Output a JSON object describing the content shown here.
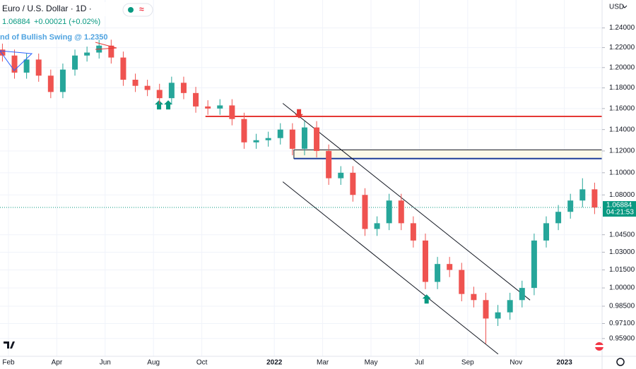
{
  "header": {
    "title": "Euro / U.S. Dollar · 1D ·",
    "change": "+0.00021 (+0.02%)",
    "note": "nd of Bullish Swing @ 1.2350",
    "currency": "USD",
    "countdown": "04:21:53"
  },
  "chart_data": {
    "type": "candlestick",
    "log_scale": true,
    "grid": true,
    "up_color": "#26a69a",
    "down_color": "#ef5350",
    "x": [
      0.75,
      1.25,
      1.75,
      2.25,
      2.75,
      3.25,
      3.75,
      4.25,
      4.75,
      5.25,
      5.75,
      6.25,
      6.75,
      7.25,
      7.75,
      8.25,
      8.75,
      9.25,
      9.75,
      10.25,
      10.75,
      11.25,
      11.75,
      12.25,
      12.75,
      13.25,
      13.75,
      14.25,
      14.75,
      15.25,
      15.75,
      16.25,
      16.75,
      17.25,
      17.75,
      18.25,
      18.75,
      19.25,
      19.75,
      20.25,
      20.75,
      21.25,
      21.75,
      22.25,
      22.75,
      23.25,
      23.75,
      24.25,
      24.75,
      25.25
    ],
    "open": [
      1.218,
      1.212,
      1.195,
      1.208,
      1.192,
      1.176,
      1.198,
      1.212,
      1.215,
      1.222,
      1.21,
      1.188,
      1.182,
      1.178,
      1.17,
      1.185,
      1.175,
      1.162,
      1.16,
      1.163,
      1.15,
      1.128,
      1.13,
      1.132,
      1.14,
      1.122,
      1.142,
      1.12,
      1.095,
      1.1,
      1.08,
      1.05,
      1.055,
      1.075,
      1.055,
      1.04,
      1.005,
      1.02,
      1.015,
      0.995,
      0.99,
      0.975,
      0.98,
      0.99,
      1.0,
      1.04,
      1.055,
      1.065,
      1.075,
      1.085
    ],
    "high": [
      1.224,
      1.218,
      1.214,
      1.214,
      1.198,
      1.204,
      1.218,
      1.221,
      1.228,
      1.228,
      1.216,
      1.194,
      1.188,
      1.184,
      1.191,
      1.191,
      1.181,
      1.168,
      1.169,
      1.169,
      1.156,
      1.136,
      1.138,
      1.146,
      1.146,
      1.148,
      1.148,
      1.126,
      1.106,
      1.106,
      1.086,
      1.061,
      1.081,
      1.081,
      1.061,
      1.046,
      1.026,
      1.026,
      1.021,
      1.001,
      0.996,
      0.986,
      0.996,
      1.006,
      1.046,
      1.061,
      1.071,
      1.081,
      1.095,
      1.091
    ],
    "low": [
      1.206,
      1.189,
      1.189,
      1.186,
      1.17,
      1.17,
      1.192,
      1.206,
      1.209,
      1.204,
      1.182,
      1.176,
      1.172,
      1.164,
      1.164,
      1.169,
      1.156,
      1.154,
      1.154,
      1.144,
      1.122,
      1.122,
      1.124,
      1.126,
      1.116,
      1.116,
      1.114,
      1.089,
      1.089,
      1.074,
      1.044,
      1.044,
      1.049,
      1.049,
      1.034,
      0.999,
      0.999,
      1.009,
      0.989,
      0.984,
      0.955,
      0.969,
      0.974,
      0.984,
      0.994,
      1.034,
      1.049,
      1.059,
      1.069,
      1.063
    ],
    "close": [
      1.212,
      1.195,
      1.208,
      1.192,
      1.176,
      1.198,
      1.212,
      1.215,
      1.222,
      1.21,
      1.188,
      1.182,
      1.178,
      1.17,
      1.185,
      1.175,
      1.162,
      1.16,
      1.163,
      1.15,
      1.128,
      1.13,
      1.132,
      1.14,
      1.122,
      1.142,
      1.12,
      1.095,
      1.1,
      1.08,
      1.05,
      1.055,
      1.075,
      1.055,
      1.04,
      1.005,
      1.02,
      1.015,
      0.995,
      0.99,
      0.975,
      0.98,
      0.99,
      1.0,
      1.04,
      1.055,
      1.065,
      1.075,
      1.085,
      1.06884
    ],
    "xlim": [
      0.65,
      25.56
    ],
    "ylim": [
      0.945,
      1.269
    ],
    "xticks": [
      {
        "value": 1,
        "label": "Feb"
      },
      {
        "value": 3,
        "label": "Apr"
      },
      {
        "value": 5,
        "label": "Jun"
      },
      {
        "value": 7,
        "label": "Aug"
      },
      {
        "value": 9,
        "label": "Oct"
      },
      {
        "value": 12,
        "label": "2022"
      },
      {
        "value": 14,
        "label": "Mar"
      },
      {
        "value": 16,
        "label": "May"
      },
      {
        "value": 18,
        "label": "Jul"
      },
      {
        "value": 20,
        "label": "Sep"
      },
      {
        "value": 22,
        "label": "Nov"
      },
      {
        "value": 24,
        "label": "2023"
      }
    ],
    "yticks": [
      {
        "value": 1.24,
        "label": "1.24000"
      },
      {
        "value": 1.22,
        "label": "1.22000"
      },
      {
        "value": 1.2,
        "label": "1.20000"
      },
      {
        "value": 1.18,
        "label": "1.18000"
      },
      {
        "value": 1.16,
        "label": "1.16000"
      },
      {
        "value": 1.14,
        "label": "1.14000"
      },
      {
        "value": 1.12,
        "label": "1.12000"
      },
      {
        "value": 1.1,
        "label": "1.10000"
      },
      {
        "value": 1.08,
        "label": "1.08000"
      },
      {
        "value": 1.045,
        "label": "1.04500"
      },
      {
        "value": 1.03,
        "label": "1.03000"
      },
      {
        "value": 1.015,
        "label": "1.01500"
      },
      {
        "value": 1,
        "label": "1.00000"
      },
      {
        "value": 0.985,
        "label": "0.98500"
      },
      {
        "value": 0.971,
        "label": "0.97100"
      },
      {
        "value": 0.959,
        "label": "0.95900"
      }
    ],
    "drawings": [
      {
        "kind": "ray",
        "color": "#e53935",
        "x": [
          9.15
        ],
        "prices": [
          1.1525
        ]
      },
      {
        "kind": "zone",
        "color": "#1e3f9a",
        "x": [
          12.81
        ],
        "prices": [
          1.121,
          1.113
        ]
      },
      {
        "kind": "trend",
        "color": "#131722",
        "x": [
          12.35,
          22.58
        ],
        "prices": [
          1.165,
          0.99
        ]
      },
      {
        "kind": "trend",
        "color": "#131722",
        "x": [
          12.35,
          21.26
        ],
        "prices": [
          1.0918,
          0.9467
        ]
      },
      {
        "kind": "arrow-up",
        "color": "#089981",
        "x": [
          7.23
        ],
        "prices": [
          1.1625
        ]
      },
      {
        "kind": "arrow-up",
        "color": "#089981",
        "x": [
          7.61
        ],
        "prices": [
          1.1625
        ]
      },
      {
        "kind": "arrow-up",
        "color": "#089981",
        "x": [
          18.3
        ],
        "prices": [
          0.99
        ]
      },
      {
        "kind": "arrow-down",
        "color": "#e53935",
        "x": [
          13.02
        ],
        "prices": [
          1.156
        ]
      }
    ]
  }
}
